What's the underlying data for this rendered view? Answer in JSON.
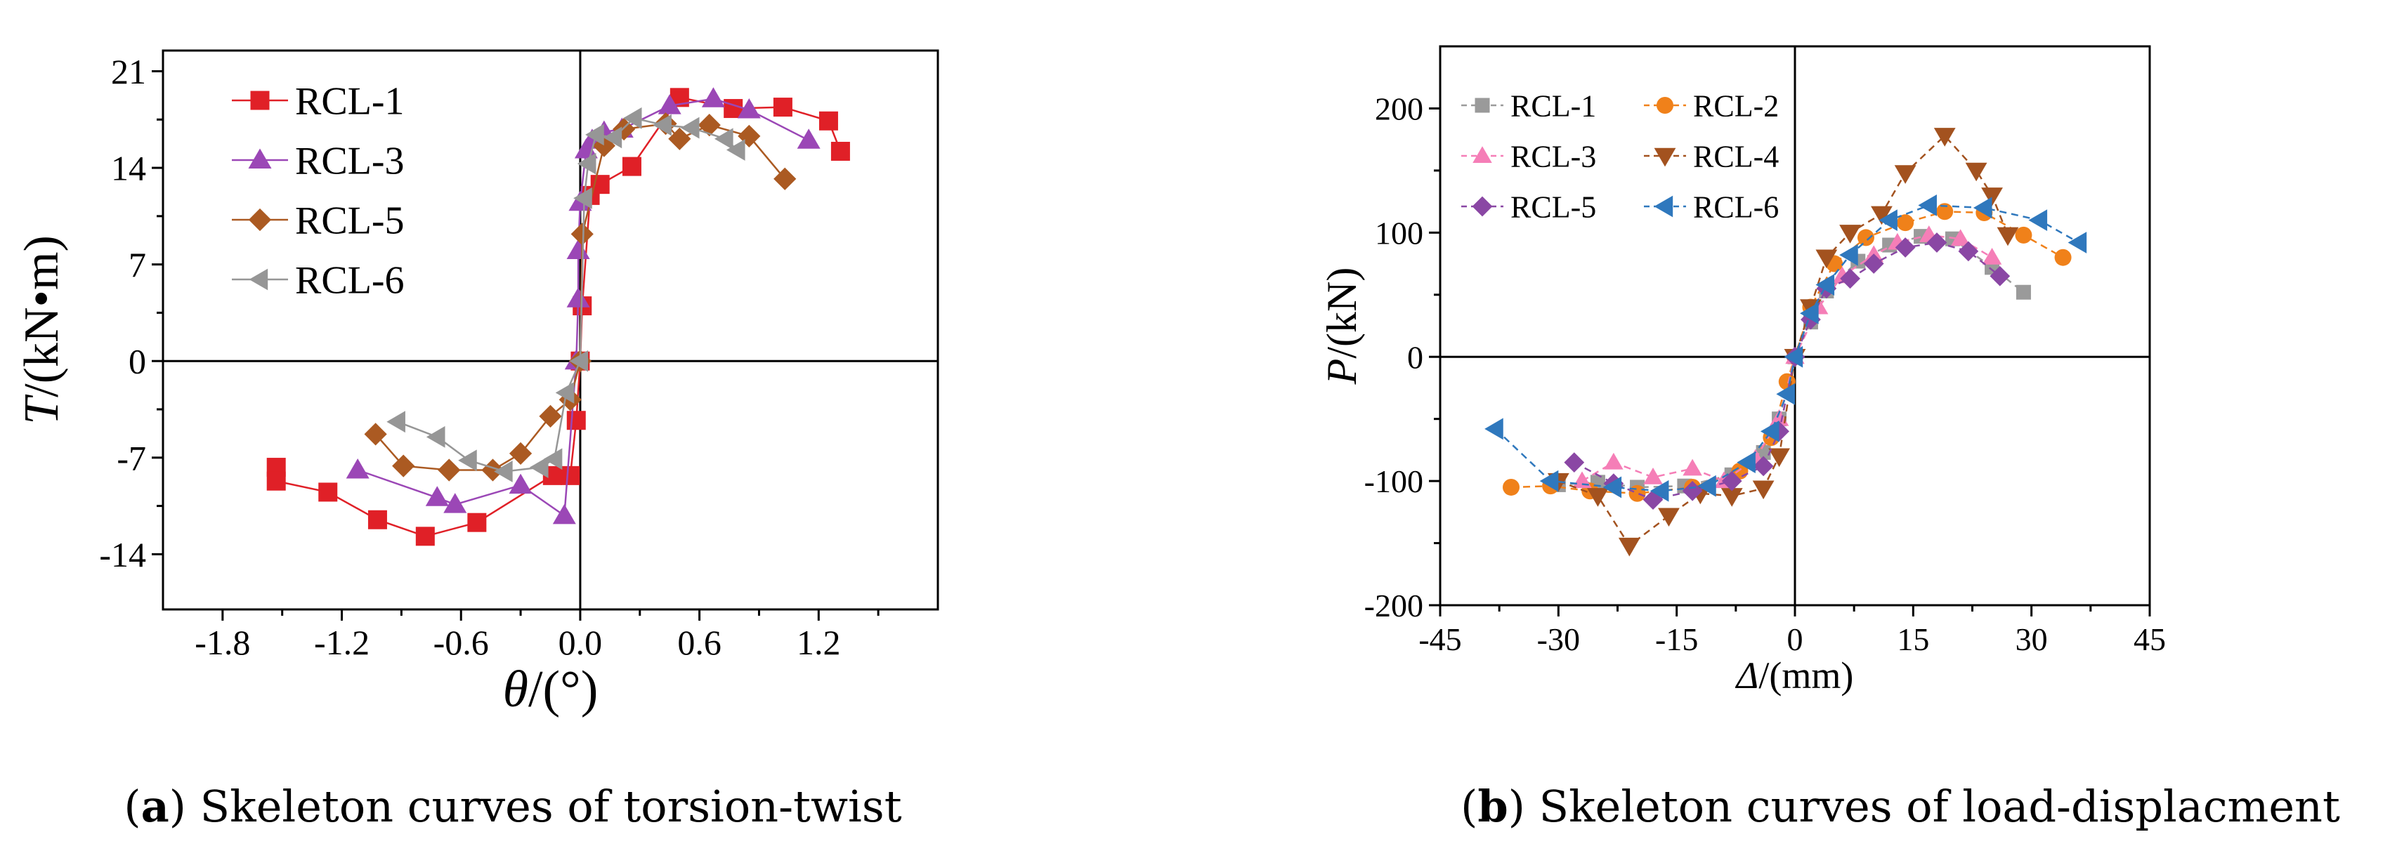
{
  "captions": [
    {
      "letter": "a",
      "text": "Skeleton curves of torsion-twist"
    },
    {
      "letter": "b",
      "text": "Skeleton curves of load-displacment"
    }
  ],
  "chart_data": [
    {
      "type": "line",
      "id": "a",
      "title": "",
      "xlabel_var": "θ",
      "xlabel_unit": "/(°)",
      "ylabel_var": "T",
      "ylabel_unit": "/(kN•m)",
      "xlim": [
        -2.1,
        1.8
      ],
      "ylim": [
        -18,
        22.5
      ],
      "xticks": [
        -1.8,
        -1.2,
        -0.6,
        0.0,
        0.6,
        1.2
      ],
      "xtick_labels": [
        "-1.8",
        "-1.2",
        "-0.6",
        "0.0",
        "0.6",
        "1.2"
      ],
      "yticks": [
        -14,
        -7,
        0,
        7,
        14,
        21
      ],
      "ytick_labels": [
        "-14",
        "-7",
        "0",
        "7",
        "14",
        "21"
      ],
      "legend_position": "top-left",
      "series": [
        {
          "name": "RCL-1",
          "color": "#e02027",
          "marker": "square",
          "size": 27,
          "points": [
            [
              -1.53,
              -7.7
            ],
            [
              -1.53,
              -8.7
            ],
            [
              -1.27,
              -9.5
            ],
            [
              -1.02,
              -11.5
            ],
            [
              -0.78,
              -12.7
            ],
            [
              -0.52,
              -11.7
            ],
            [
              -0.14,
              -8.3
            ],
            [
              -0.05,
              -8.3
            ],
            [
              -0.02,
              -4.3
            ],
            [
              0.0,
              0.0
            ],
            [
              0.01,
              4.0
            ],
            [
              0.05,
              12.0
            ],
            [
              0.1,
              12.8
            ],
            [
              0.26,
              14.1
            ],
            [
              0.5,
              19.1
            ],
            [
              0.77,
              18.3
            ],
            [
              1.02,
              18.4
            ],
            [
              1.25,
              17.4
            ],
            [
              1.31,
              15.2
            ]
          ]
        },
        {
          "name": "RCL-3",
          "color": "#9b47b6",
          "marker": "triangle-up",
          "size": 30,
          "points": [
            [
              -1.12,
              -7.9
            ],
            [
              -0.72,
              -9.9
            ],
            [
              -0.63,
              -10.4
            ],
            [
              -0.3,
              -9.0
            ],
            [
              -0.08,
              -11.2
            ],
            [
              -0.02,
              0.0
            ],
            [
              -0.01,
              4.5
            ],
            [
              -0.01,
              8.0
            ],
            [
              0.0,
              11.5
            ],
            [
              0.03,
              15.3
            ],
            [
              0.06,
              16.0
            ],
            [
              0.12,
              16.6
            ],
            [
              0.21,
              16.8
            ],
            [
              0.45,
              18.5
            ],
            [
              0.67,
              19.0
            ],
            [
              0.85,
              18.2
            ],
            [
              1.15,
              16.0
            ]
          ]
        },
        {
          "name": "RCL-5",
          "color": "#ab5a22",
          "marker": "diamond",
          "size": 28,
          "points": [
            [
              -1.03,
              -5.3
            ],
            [
              -0.89,
              -7.6
            ],
            [
              -0.66,
              -7.9
            ],
            [
              -0.44,
              -7.9
            ],
            [
              -0.3,
              -6.7
            ],
            [
              -0.15,
              -4.0
            ],
            [
              -0.05,
              -2.8
            ],
            [
              0.0,
              0.0
            ],
            [
              0.01,
              9.2
            ],
            [
              0.12,
              15.6
            ],
            [
              0.22,
              16.8
            ],
            [
              0.43,
              17.2
            ],
            [
              0.5,
              16.1
            ],
            [
              0.65,
              17.1
            ],
            [
              0.85,
              16.3
            ],
            [
              1.03,
              13.2
            ]
          ]
        },
        {
          "name": "RCL-6",
          "color": "#969696",
          "marker": "triangle-left",
          "size": 28,
          "points": [
            [
              -0.92,
              -4.4
            ],
            [
              -0.72,
              -5.5
            ],
            [
              -0.56,
              -7.2
            ],
            [
              -0.38,
              -8.0
            ],
            [
              -0.2,
              -7.7
            ],
            [
              -0.13,
              -7.1
            ],
            [
              -0.07,
              -2.3
            ],
            [
              0.0,
              0.0
            ],
            [
              0.02,
              11.8
            ],
            [
              0.04,
              14.3
            ],
            [
              0.08,
              16.4
            ],
            [
              0.17,
              16.2
            ],
            [
              0.27,
              17.6
            ],
            [
              0.42,
              17.1
            ],
            [
              0.56,
              16.9
            ],
            [
              0.73,
              16.1
            ],
            [
              0.79,
              15.3
            ]
          ]
        }
      ]
    },
    {
      "type": "scatter",
      "id": "b",
      "title": "",
      "xlabel_var": "Δ",
      "xlabel_unit": "/(mm)",
      "ylabel_var": "P",
      "ylabel_unit": "/(kN)",
      "xlim": [
        -45,
        45
      ],
      "ylim": [
        -200,
        250
      ],
      "xticks": [
        -45,
        -30,
        -15,
        0,
        15,
        30,
        45
      ],
      "xtick_labels": [
        "-45",
        "-30",
        "-15",
        "0",
        "15",
        "30",
        "45"
      ],
      "yticks": [
        -200,
        -100,
        0,
        100,
        200
      ],
      "ytick_labels": [
        "-200",
        "-100",
        "0",
        "100",
        "200"
      ],
      "legend_position": "top-left",
      "series": [
        {
          "name": "RCL-1",
          "color": "#9a9a9a",
          "marker": "square",
          "size": 21,
          "points": [
            [
              -30,
              -103
            ],
            [
              -25,
              -101
            ],
            [
              -20,
              -105
            ],
            [
              -14,
              -104
            ],
            [
              -8,
              -95
            ],
            [
              -4,
              -77
            ],
            [
              -2,
              -50
            ],
            [
              0,
              0
            ],
            [
              2,
              28
            ],
            [
              4,
              53
            ],
            [
              8,
              77
            ],
            [
              12,
              90
            ],
            [
              16,
              97
            ],
            [
              20,
              95
            ],
            [
              25,
              72
            ],
            [
              29,
              52
            ]
          ]
        },
        {
          "name": "RCL-2",
          "color": "#f0811a",
          "marker": "circle",
          "size": 24,
          "points": [
            [
              -36,
              -105
            ],
            [
              -31,
              -104
            ],
            [
              -26,
              -108
            ],
            [
              -20,
              -110
            ],
            [
              -13,
              -105
            ],
            [
              -7,
              -92
            ],
            [
              -3,
              -65
            ],
            [
              -1,
              -20
            ],
            [
              0,
              0
            ],
            [
              2,
              40
            ],
            [
              5,
              75
            ],
            [
              9,
              96
            ],
            [
              14,
              108
            ],
            [
              19,
              117
            ],
            [
              24,
              116
            ],
            [
              29,
              98
            ],
            [
              34,
              80
            ]
          ]
        },
        {
          "name": "RCL-3",
          "color": "#f57eb7",
          "marker": "triangle-up",
          "size": 25,
          "points": [
            [
              -27,
              -100
            ],
            [
              -23,
              -85
            ],
            [
              -18,
              -97
            ],
            [
              -13,
              -90
            ],
            [
              -9,
              -100
            ],
            [
              -5,
              -82
            ],
            [
              -2,
              -50
            ],
            [
              0,
              0
            ],
            [
              3,
              40
            ],
            [
              6,
              65
            ],
            [
              10,
              82
            ],
            [
              13,
              92
            ],
            [
              17,
              98
            ],
            [
              21,
              95
            ],
            [
              25,
              80
            ]
          ]
        },
        {
          "name": "RCL-4",
          "color": "#a3521f",
          "marker": "triangle-down",
          "size": 28,
          "points": [
            [
              -30,
              -100
            ],
            [
              -25,
              -112
            ],
            [
              -21,
              -152
            ],
            [
              -16,
              -128
            ],
            [
              -12,
              -110
            ],
            [
              -8,
              -112
            ],
            [
              -4,
              -106
            ],
            [
              -2,
              -80
            ],
            [
              0,
              0
            ],
            [
              2,
              40
            ],
            [
              4,
              80
            ],
            [
              7,
              100
            ],
            [
              11,
              115
            ],
            [
              14,
              148
            ],
            [
              19,
              178
            ],
            [
              23,
              150
            ],
            [
              25,
              130
            ],
            [
              27,
              98
            ]
          ]
        },
        {
          "name": "RCL-5",
          "color": "#8a47a4",
          "marker": "diamond",
          "size": 25,
          "points": [
            [
              -28,
              -85
            ],
            [
              -23,
              -102
            ],
            [
              -18,
              -115
            ],
            [
              -13,
              -108
            ],
            [
              -8,
              -100
            ],
            [
              -4,
              -88
            ],
            [
              -2,
              -60
            ],
            [
              0,
              0
            ],
            [
              2,
              30
            ],
            [
              4,
              55
            ],
            [
              7,
              63
            ],
            [
              10,
              75
            ],
            [
              14,
              88
            ],
            [
              18,
              92
            ],
            [
              22,
              85
            ],
            [
              26,
              65
            ]
          ]
        },
        {
          "name": "RCL-6",
          "color": "#2f78bd",
          "marker": "triangle-left",
          "size": 28,
          "points": [
            [
              -38,
              -58
            ],
            [
              -31,
              -100
            ],
            [
              -23,
              -105
            ],
            [
              -17,
              -108
            ],
            [
              -11,
              -104
            ],
            [
              -6,
              -85
            ],
            [
              -3,
              -60
            ],
            [
              -1,
              -30
            ],
            [
              0,
              0
            ],
            [
              2,
              35
            ],
            [
              4,
              58
            ],
            [
              7,
              82
            ],
            [
              12,
              110
            ],
            [
              17,
              122
            ],
            [
              24,
              120
            ],
            [
              31,
              110
            ],
            [
              36,
              92
            ]
          ]
        }
      ]
    }
  ]
}
